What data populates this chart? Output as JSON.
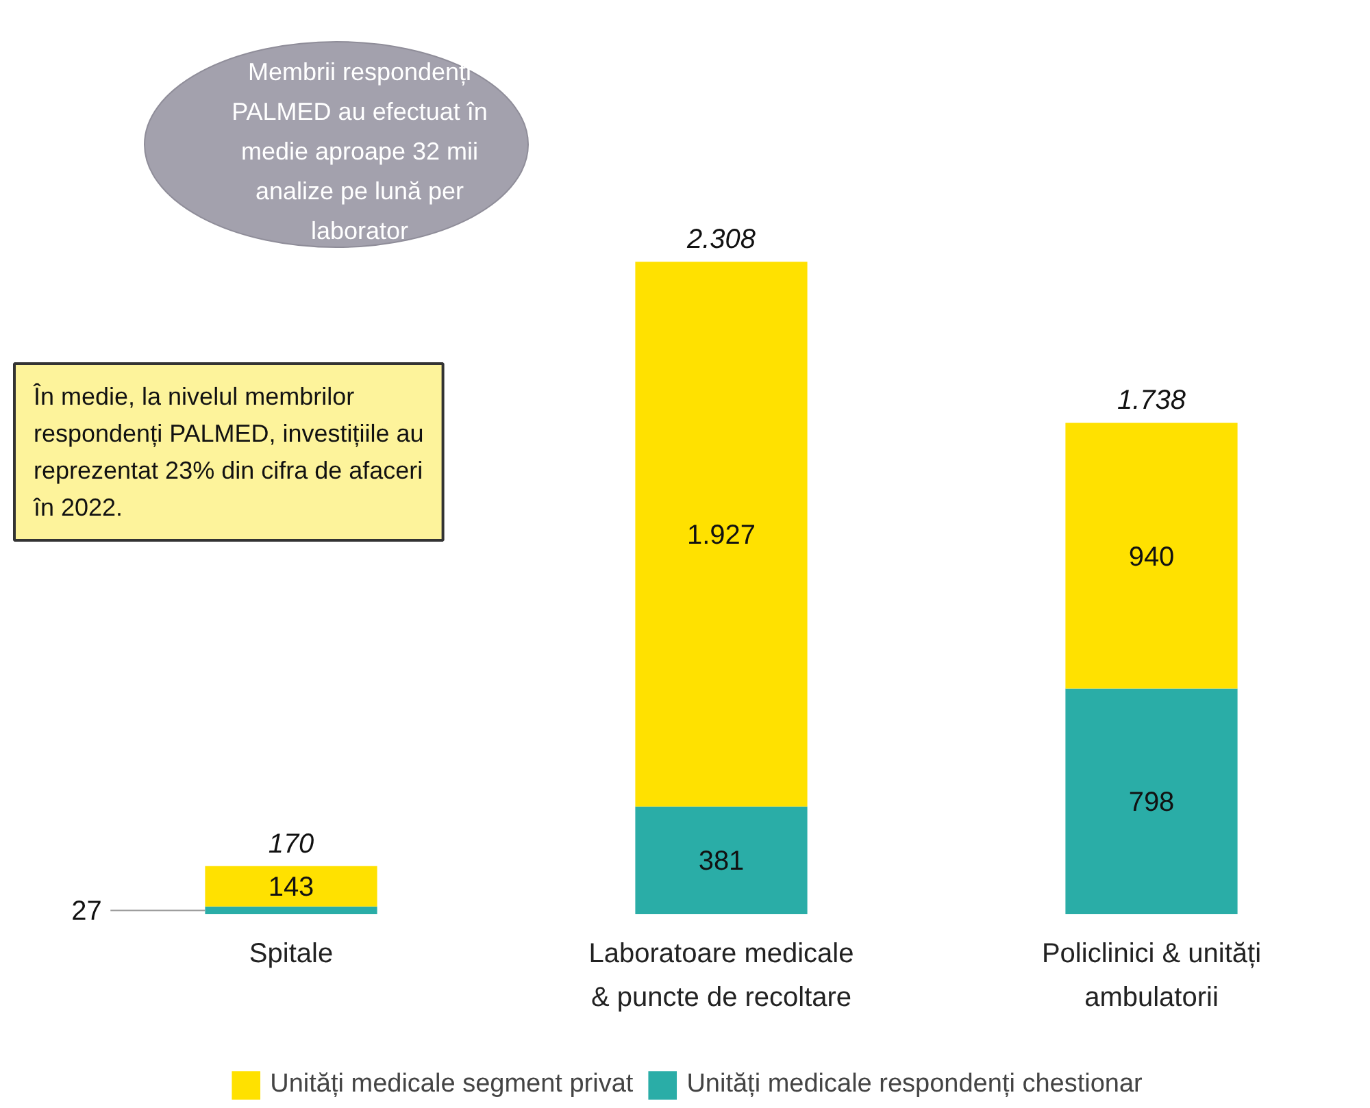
{
  "chart_data": {
    "type": "bar",
    "stacked": true,
    "categories": [
      "Spitale",
      "Laboratoare medicale & puncte de recoltare",
      "Policlinici & unități ambulatorii"
    ],
    "series": [
      {
        "name": "Unități medicale respondenți chestionar",
        "color": "#2aada7",
        "values": [
          27,
          381,
          798
        ],
        "value_labels": [
          "27",
          "381",
          "798"
        ]
      },
      {
        "name": "Unități medicale segment privat",
        "color": "#ffe100",
        "values": [
          143,
          1927,
          940
        ],
        "value_labels": [
          "143",
          "1.927",
          "940"
        ]
      }
    ],
    "totals": [
      "170",
      "2.308",
      "1.738"
    ],
    "annotations": [
      "Membrii respondenți PALMED au efectuat în medie aproape 32 mii analize pe lună per laborator",
      "În medie, la nivelul membrilor respondenți PALMED, investițiile au reprezentat 23% din cifra de afaceri în 2022."
    ],
    "legend": "bottom",
    "grid": false
  }
}
